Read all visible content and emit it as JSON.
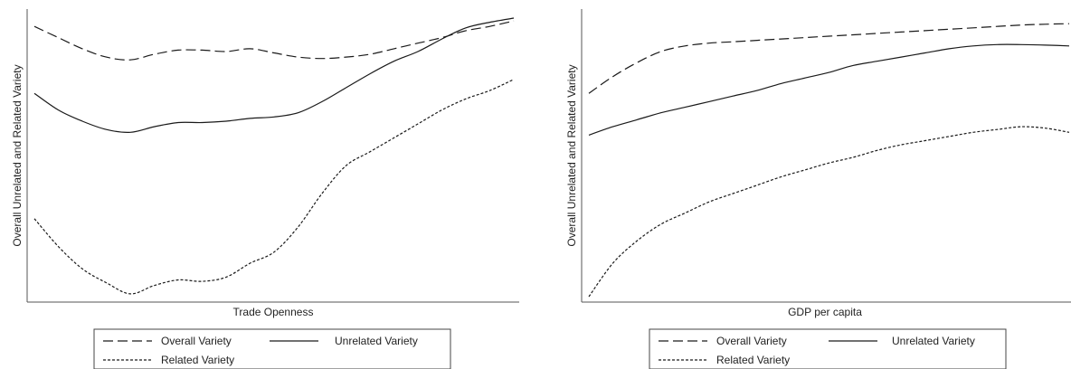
{
  "chart_data": [
    {
      "type": "line",
      "xlabel": "Trade Openness",
      "ylabel": "Overall Unrelated and Related Variety",
      "x_ticks_shown": false,
      "y_ticks_shown": false,
      "grid": false,
      "legend_position": "bottom",
      "x": [
        0,
        0.05,
        0.1,
        0.15,
        0.2,
        0.25,
        0.3,
        0.35,
        0.4,
        0.45,
        0.5,
        0.55,
        0.6,
        0.65,
        0.7,
        0.75,
        0.8,
        0.85,
        0.9,
        0.95,
        1.0
      ],
      "series": [
        {
          "name": "Overall Variety",
          "style": "long-dash",
          "values": [
            0.97,
            0.93,
            0.89,
            0.86,
            0.85,
            0.87,
            0.885,
            0.885,
            0.88,
            0.89,
            0.875,
            0.86,
            0.855,
            0.86,
            0.87,
            0.89,
            0.91,
            0.93,
            0.955,
            0.97,
            0.99
          ]
        },
        {
          "name": "Unrelated Variety",
          "style": "solid",
          "values": [
            0.73,
            0.67,
            0.63,
            0.6,
            0.59,
            0.61,
            0.625,
            0.625,
            0.63,
            0.64,
            0.645,
            0.66,
            0.7,
            0.75,
            0.8,
            0.845,
            0.88,
            0.925,
            0.965,
            0.985,
            1.0
          ]
        },
        {
          "name": "Related Variety",
          "style": "short-dash",
          "values": [
            0.28,
            0.18,
            0.1,
            0.05,
            0.01,
            0.04,
            0.06,
            0.055,
            0.07,
            0.12,
            0.16,
            0.25,
            0.37,
            0.47,
            0.52,
            0.57,
            0.62,
            0.67,
            0.71,
            0.74,
            0.78
          ]
        }
      ]
    },
    {
      "type": "line",
      "xlabel": "GDP per capita",
      "ylabel": "Overall Unrelated and Related Variety",
      "x_ticks_shown": false,
      "y_ticks_shown": false,
      "grid": false,
      "legend_position": "bottom",
      "x": [
        0,
        0.05,
        0.1,
        0.15,
        0.2,
        0.25,
        0.3,
        0.35,
        0.4,
        0.45,
        0.5,
        0.55,
        0.6,
        0.65,
        0.7,
        0.75,
        0.8,
        0.85,
        0.9,
        0.95,
        1.0
      ],
      "series": [
        {
          "name": "Overall Variety",
          "style": "long-dash",
          "values": [
            0.73,
            0.79,
            0.84,
            0.88,
            0.9,
            0.91,
            0.915,
            0.92,
            0.925,
            0.93,
            0.935,
            0.94,
            0.945,
            0.95,
            0.955,
            0.96,
            0.965,
            0.97,
            0.975,
            0.978,
            0.98
          ]
        },
        {
          "name": "Unrelated Variety",
          "style": "solid",
          "values": [
            0.58,
            0.61,
            0.635,
            0.66,
            0.68,
            0.7,
            0.72,
            0.74,
            0.765,
            0.785,
            0.805,
            0.83,
            0.845,
            0.86,
            0.875,
            0.89,
            0.9,
            0.905,
            0.905,
            0.903,
            0.9
          ]
        },
        {
          "name": "Related Variety",
          "style": "short-dash",
          "values": [
            0.0,
            0.12,
            0.2,
            0.26,
            0.3,
            0.34,
            0.37,
            0.4,
            0.43,
            0.455,
            0.48,
            0.5,
            0.525,
            0.545,
            0.56,
            0.575,
            0.59,
            0.6,
            0.61,
            0.605,
            0.59
          ]
        }
      ]
    }
  ],
  "legend": {
    "overall": "Overall Variety",
    "unrelated": "Unrelated Variety",
    "related": "Related Variety"
  },
  "colors": {
    "line": "#1a1a1a",
    "axis": "#555555"
  }
}
